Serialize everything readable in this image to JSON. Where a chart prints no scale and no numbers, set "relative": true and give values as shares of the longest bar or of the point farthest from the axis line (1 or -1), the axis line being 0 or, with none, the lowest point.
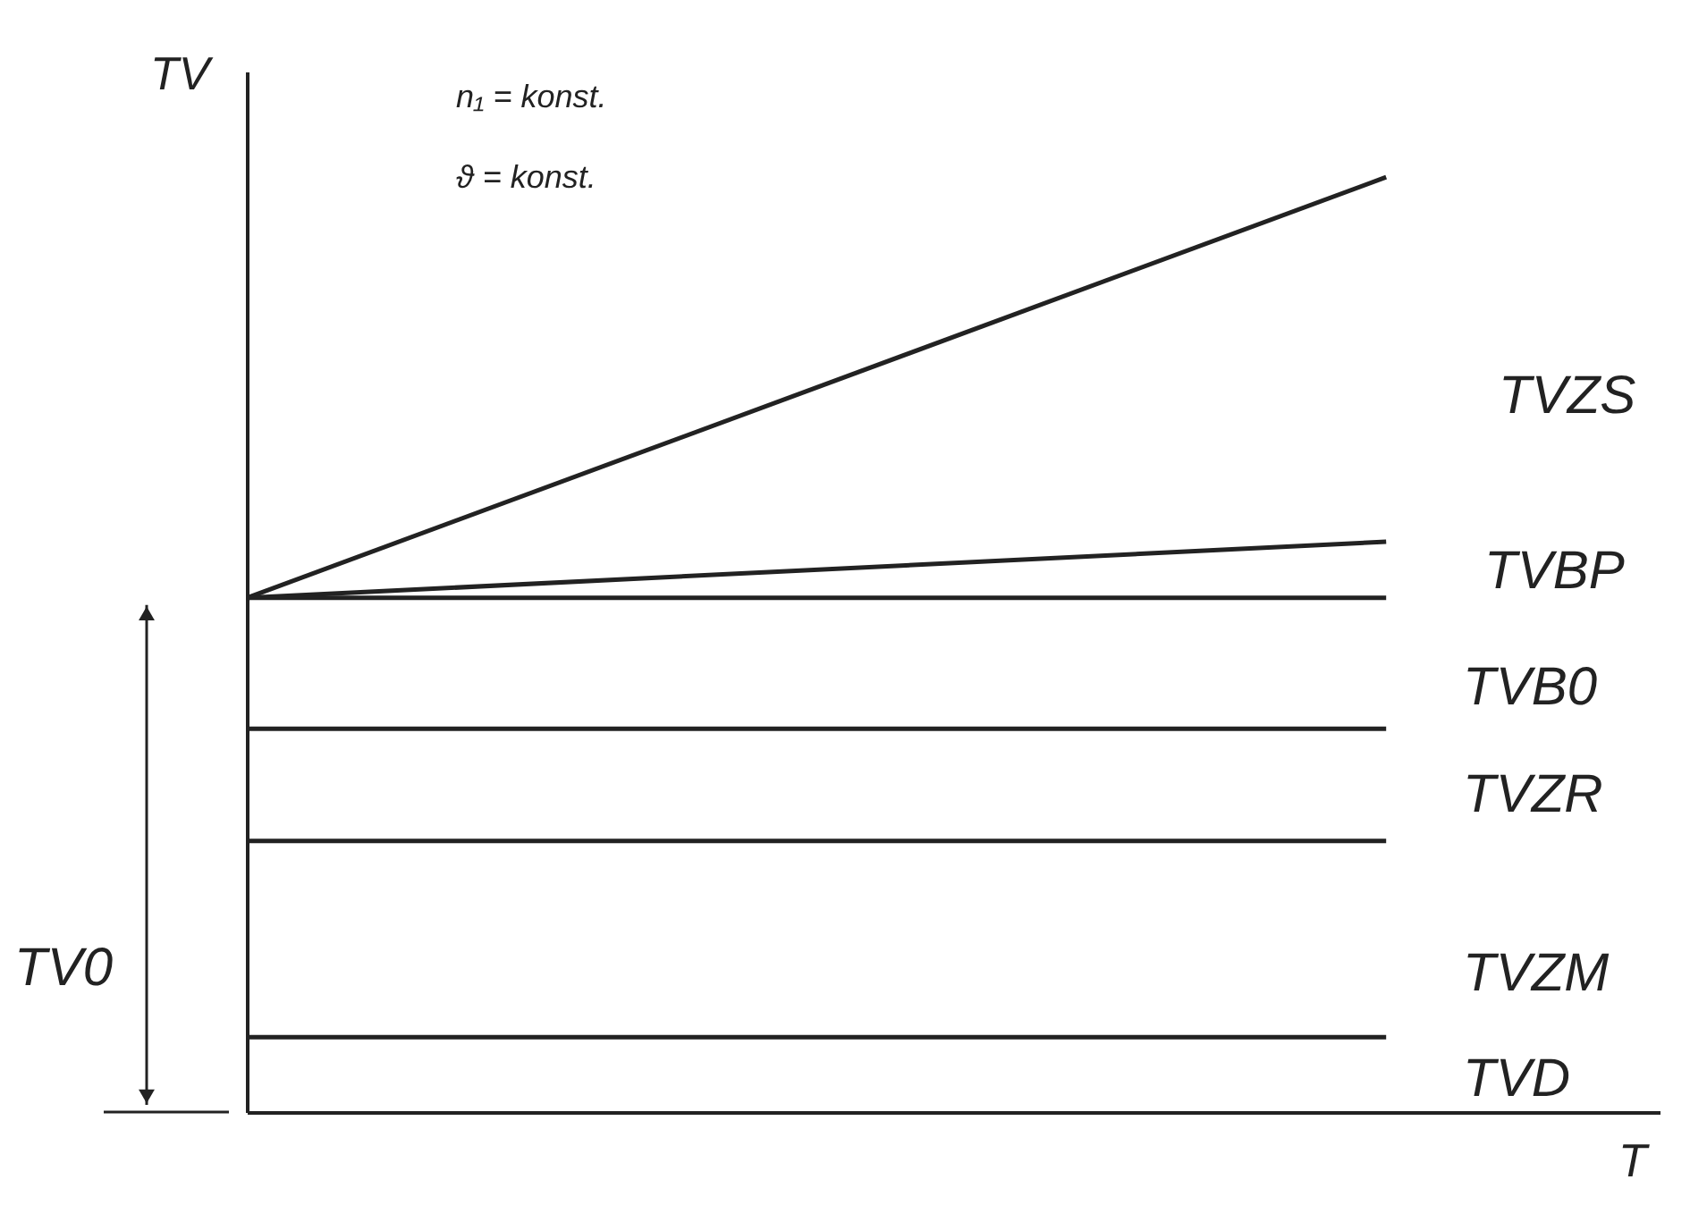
{
  "chart_data": {
    "type": "line",
    "relative": true,
    "xlabel": "T",
    "ylabel": "TV",
    "legend": false,
    "marker": "none",
    "line_style": "solid",
    "categories": [
      null,
      null
    ],
    "series": [
      {
        "color": "#222222",
        "values": [
          0.55,
          1
        ]
      },
      {
        "color": "#222222",
        "values": [
          0.55,
          0.61
        ]
      },
      {
        "color": "#222222",
        "values": [
          0.55,
          0.55
        ]
      },
      {
        "color": "#222222",
        "values": [
          0.41,
          0.41
        ]
      },
      {
        "color": "#222222",
        "values": [
          0.29,
          0.29
        ]
      },
      {
        "color": "#222222",
        "values": [
          0.08,
          0.08
        ]
      }
    ],
    "annotations": [
      "n₁ = konst.",
      "ϑ = konst.",
      "TVZS",
      "TVBP",
      "TVB0",
      "TVZR",
      "TVZM",
      "TVD",
      "TV0"
    ]
  }
}
